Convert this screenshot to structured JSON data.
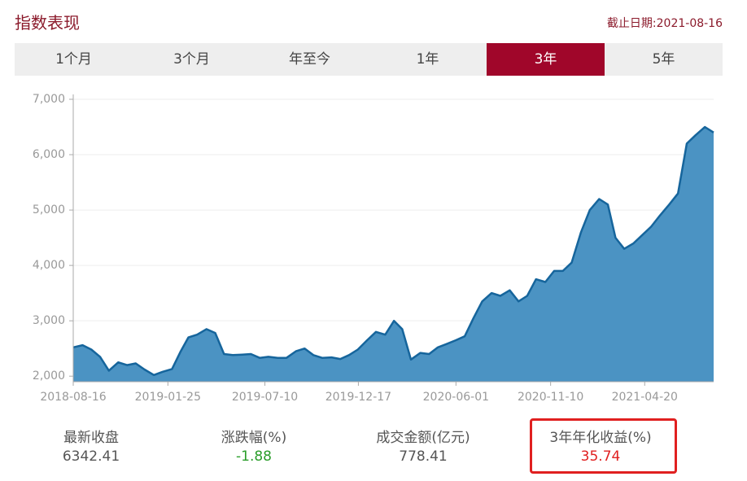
{
  "header": {
    "title": "指数表现",
    "date": "截止日期:2021-08-16"
  },
  "tabs": [
    {
      "label": "1个月",
      "active": false
    },
    {
      "label": "3个月",
      "active": false
    },
    {
      "label": "年至今",
      "active": false
    },
    {
      "label": "1年",
      "active": false
    },
    {
      "label": "3年",
      "active": true
    },
    {
      "label": "5年",
      "active": false
    }
  ],
  "chart_data": {
    "type": "area",
    "color": "#4b93c3",
    "line_color": "#16659c",
    "grid": true,
    "x": [
      "2018-08-16",
      "2018-09-01",
      "2018-09-16",
      "2018-10-01",
      "2018-10-16",
      "2018-11-01",
      "2018-11-16",
      "2018-12-01",
      "2018-12-16",
      "2019-01-01",
      "2019-01-16",
      "2019-02-01",
      "2019-02-16",
      "2019-03-01",
      "2019-03-16",
      "2019-04-01",
      "2019-04-16",
      "2019-05-01",
      "2019-05-16",
      "2019-06-01",
      "2019-06-16",
      "2019-07-01",
      "2019-07-16",
      "2019-08-01",
      "2019-08-16",
      "2019-09-01",
      "2019-09-16",
      "2019-10-01",
      "2019-10-16",
      "2019-11-01",
      "2019-11-16",
      "2019-12-01",
      "2019-12-16",
      "2020-01-01",
      "2020-01-16",
      "2020-02-01",
      "2020-02-16",
      "2020-03-01",
      "2020-03-16",
      "2020-04-01",
      "2020-04-16",
      "2020-05-01",
      "2020-05-16",
      "2020-06-01",
      "2020-06-16",
      "2020-07-01",
      "2020-07-16",
      "2020-08-01",
      "2020-08-16",
      "2020-09-01",
      "2020-09-16",
      "2020-10-01",
      "2020-10-16",
      "2020-11-01",
      "2020-11-16",
      "2020-12-01",
      "2020-12-16",
      "2021-01-01",
      "2021-01-16",
      "2021-02-01",
      "2021-02-16",
      "2021-03-01",
      "2021-03-16",
      "2021-04-01",
      "2021-04-16",
      "2021-05-01",
      "2021-05-16",
      "2021-06-01",
      "2021-06-16",
      "2021-07-01",
      "2021-07-16",
      "2021-08-01",
      "2021-08-16"
    ],
    "values": [
      2520,
      2560,
      2480,
      2350,
      2100,
      2250,
      2200,
      2230,
      2120,
      2020,
      2080,
      2130,
      2450,
      2700,
      2750,
      2850,
      2780,
      2400,
      2380,
      2390,
      2400,
      2330,
      2350,
      2330,
      2330,
      2450,
      2500,
      2380,
      2330,
      2340,
      2310,
      2380,
      2480,
      2650,
      2800,
      2750,
      3000,
      2850,
      2300,
      2420,
      2400,
      2520,
      2580,
      2650,
      2720,
      3050,
      3350,
      3500,
      3450,
      3550,
      3350,
      3450,
      3750,
      3700,
      3900,
      3900,
      4050,
      4600,
      5000,
      5200,
      5100,
      4500,
      4300,
      4400,
      4550,
      4700,
      4900,
      5100,
      5300,
      6200,
      6350,
      6500,
      6400
    ],
    "xlim": [
      "2018-08-16",
      "2021-08-16"
    ],
    "xticks": [
      "2018-08-16",
      "2019-01-25",
      "2019-07-10",
      "2019-12-17",
      "2020-06-01",
      "2020-11-10",
      "2021-04-20"
    ],
    "ylim": [
      1900,
      7000
    ],
    "yticks": [
      {
        "value": 2000,
        "label": "2,000"
      },
      {
        "value": 3000,
        "label": "3,000"
      },
      {
        "value": 4000,
        "label": "4,000"
      },
      {
        "value": 5000,
        "label": "5,000"
      },
      {
        "value": 6000,
        "label": "6,000"
      },
      {
        "value": 7000,
        "label": "7,000"
      }
    ]
  },
  "stats": [
    {
      "label": "最新收盘",
      "value": 6342.41,
      "color": "#555555"
    },
    {
      "label": "涨跌幅(%)",
      "value": -1.88,
      "color": "#2a9d2a"
    },
    {
      "label": "成交金额(亿元)",
      "value": 778.41,
      "color": "#555555"
    },
    {
      "label": "3年年化收益(%)",
      "value": 35.74,
      "color": "#e02020"
    }
  ]
}
